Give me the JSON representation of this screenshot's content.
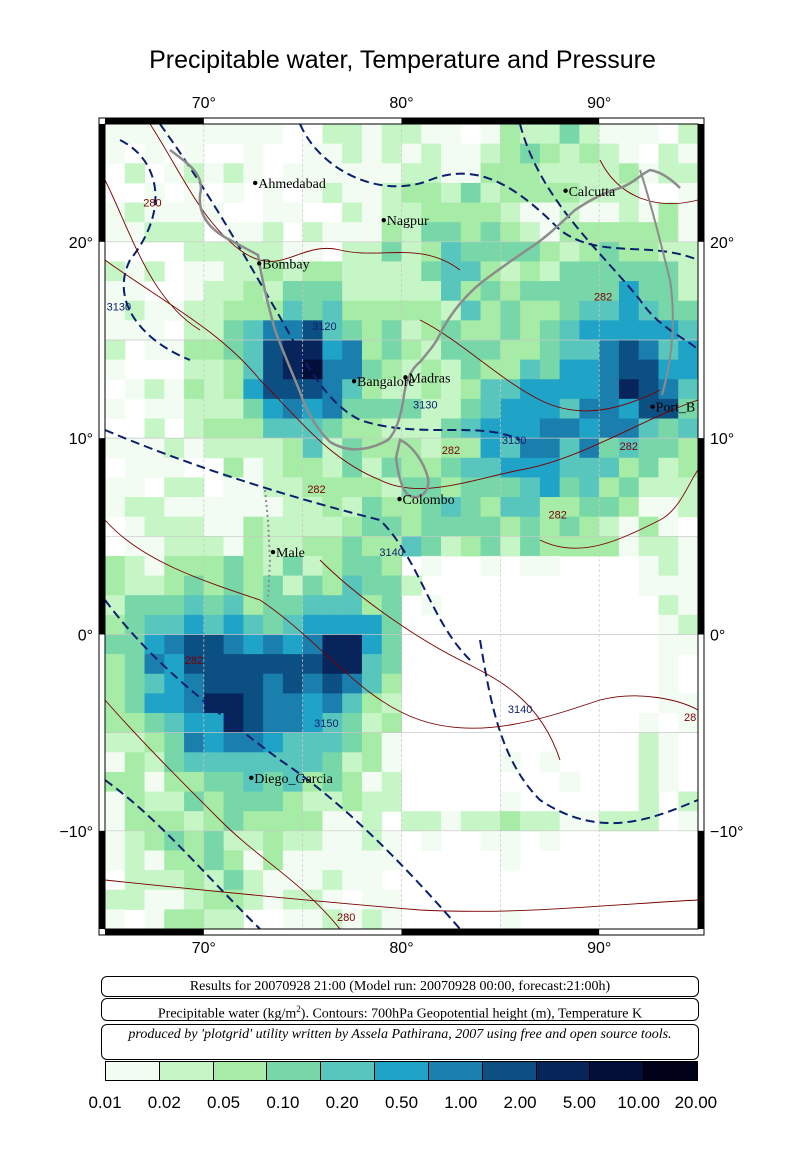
{
  "title": "Precipitable water, Temperature and Pressure",
  "map": {
    "lon_range": [
      65,
      95
    ],
    "lat_range": [
      -15,
      26
    ],
    "lon_labels": [
      "70°",
      "80°",
      "90°"
    ],
    "lat_labels_left": [
      "20°",
      "10°",
      "0°",
      "−10°"
    ],
    "lat_labels_right": [
      "20°",
      "10°",
      "0°",
      "−10°"
    ],
    "cities": [
      {
        "name": "Ahmedabad",
        "lon": 72.6,
        "lat": 23.0
      },
      {
        "name": "Nagpur",
        "lon": 79.1,
        "lat": 21.1
      },
      {
        "name": "Calcutta",
        "lon": 88.3,
        "lat": 22.6
      },
      {
        "name": "Bombay",
        "lon": 72.8,
        "lat": 18.9
      },
      {
        "name": "Bangalore",
        "lon": 77.6,
        "lat": 12.9
      },
      {
        "name": "Madras",
        "lon": 80.2,
        "lat": 13.1
      },
      {
        "name": "Port_B",
        "lon": 92.7,
        "lat": 11.6
      },
      {
        "name": "Colombo",
        "lon": 79.9,
        "lat": 6.9
      },
      {
        "name": "Male",
        "lon": 73.5,
        "lat": 4.2
      },
      {
        "name": "Diego_Garcia",
        "lon": 72.4,
        "lat": -7.3
      }
    ],
    "contour_labels": [
      {
        "text": "3130",
        "lon": 65.7,
        "lat": 16.5,
        "kind": "height"
      },
      {
        "text": "3120",
        "lon": 76.1,
        "lat": 15.5,
        "kind": "height"
      },
      {
        "text": "3130",
        "lon": 81.2,
        "lat": 11.5,
        "kind": "height"
      },
      {
        "text": "3130",
        "lon": 85.7,
        "lat": 9.7,
        "kind": "height"
      },
      {
        "text": "3140",
        "lon": 79.5,
        "lat": 4.0,
        "kind": "height"
      },
      {
        "text": "3150",
        "lon": 76.2,
        "lat": -4.7,
        "kind": "height"
      },
      {
        "text": "3140",
        "lon": 86.0,
        "lat": -4.0,
        "kind": "height"
      },
      {
        "text": "280",
        "lon": 67.4,
        "lat": 21.8,
        "kind": "temp"
      },
      {
        "text": "282",
        "lon": 90.2,
        "lat": 17.0,
        "kind": "temp"
      },
      {
        "text": "282",
        "lon": 82.5,
        "lat": 9.2,
        "kind": "temp"
      },
      {
        "text": "282",
        "lon": 91.5,
        "lat": 9.4,
        "kind": "temp"
      },
      {
        "text": "282",
        "lon": 75.7,
        "lat": 7.2,
        "kind": "temp"
      },
      {
        "text": "282",
        "lon": 87.9,
        "lat": 5.9,
        "kind": "temp"
      },
      {
        "text": "282",
        "lon": 69.5,
        "lat": -1.5,
        "kind": "temp"
      },
      {
        "text": "28",
        "lon": 94.6,
        "lat": -4.4,
        "kind": "temp"
      },
      {
        "text": "280",
        "lon": 77.2,
        "lat": -14.6,
        "kind": "temp"
      }
    ]
  },
  "info": {
    "line1": "Results for 20070928 21:00 (Model run: 20070928 00:00, forecast:21:00h)",
    "line2_pre": "Precipitable water (kg/m",
    "line2_sup": "2",
    "line2_post": ").  Contours: 700hPa Geopotential height (m), Temperature K",
    "line3": "produced by 'plotgrid' utility written by Assela Pathirana, 2007 using free and open source tools."
  },
  "legend": {
    "colors": [
      "#f2fcf2",
      "#c6f5c6",
      "#a6eca6",
      "#78d7a8",
      "#58c6bc",
      "#1fa3c6",
      "#1b7fae",
      "#0c4f82",
      "#07255a",
      "#030f38",
      "#000018"
    ],
    "ticks": [
      "0.01",
      "0.02",
      "0.05",
      "0.10",
      "0.20",
      "0.50",
      "1.00",
      "2.00",
      "5.00",
      "10.00",
      "20.00"
    ]
  },
  "colors": {
    "height_contour": "#0a1f6e",
    "temp_contour": "#7a0000",
    "coast": "#8c8c8c",
    "grid": "#c8c8c8"
  }
}
